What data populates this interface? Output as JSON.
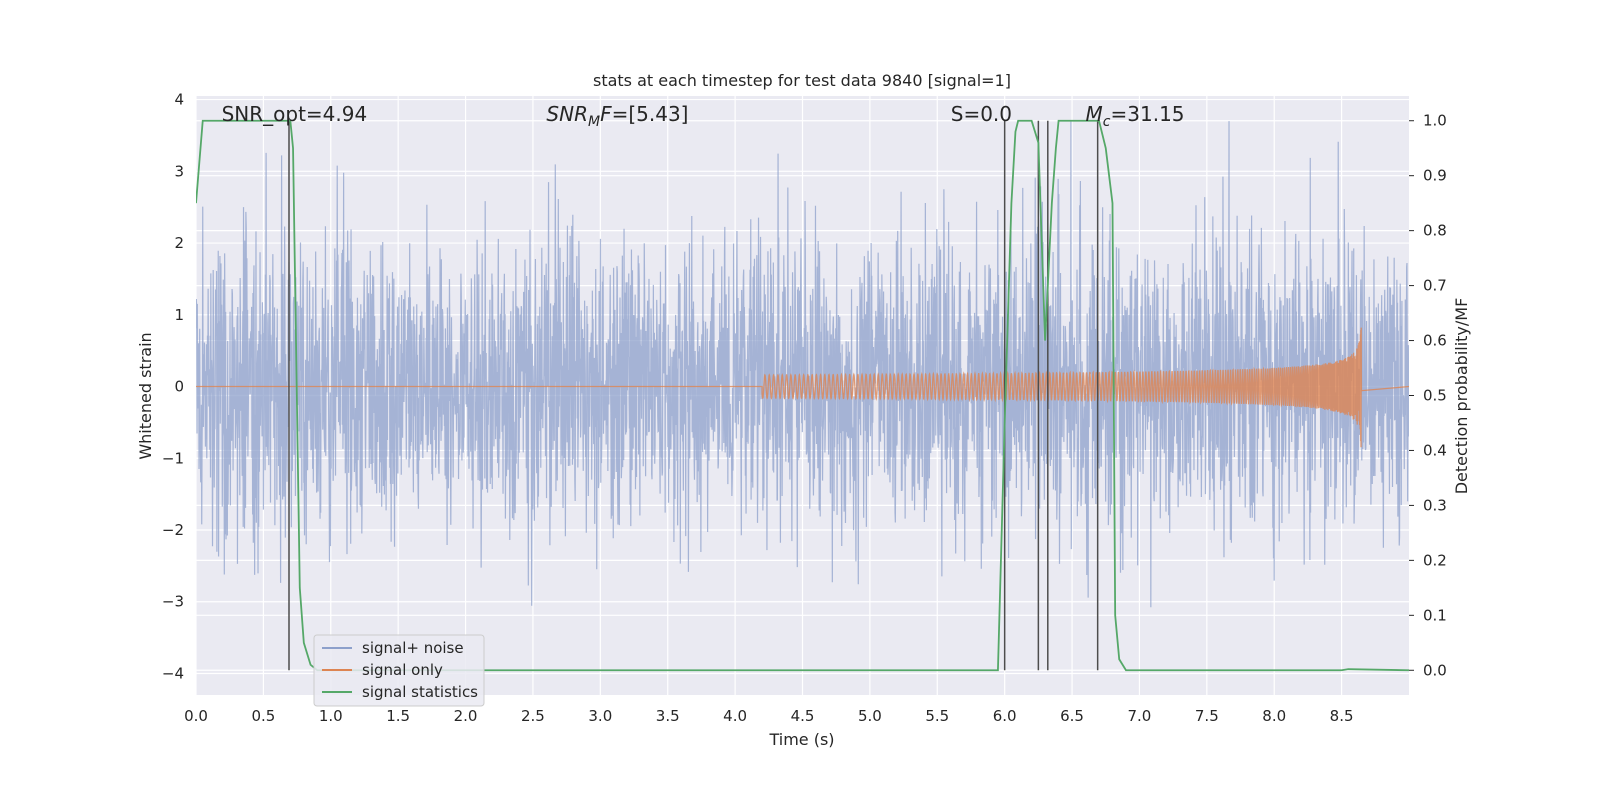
{
  "chart_data": {
    "type": "line",
    "title": "stats at each timestep for test data 9840 [signal=1]",
    "xlabel": "Time (s)",
    "ylabel_left": "Whitened strain",
    "ylabel_right": "Detection probability/MF",
    "xlim": [
      0.0,
      9.0
    ],
    "ylim_left": [
      -4.3,
      4.05
    ],
    "ylim_right": [
      -0.045,
      1.045
    ],
    "xticks": [
      0.0,
      0.5,
      1.0,
      1.5,
      2.0,
      2.5,
      3.0,
      3.5,
      4.0,
      4.5,
      5.0,
      5.5,
      6.0,
      6.5,
      7.0,
      7.5,
      8.0,
      8.5
    ],
    "xtick_labels": [
      "0.0",
      "0.5",
      "1.0",
      "1.5",
      "2.0",
      "2.5",
      "3.0",
      "3.5",
      "4.0",
      "4.5",
      "5.0",
      "5.5",
      "6.0",
      "6.5",
      "7.0",
      "7.5",
      "8.0",
      "8.5"
    ],
    "yticks_left": [
      4,
      3,
      2,
      1,
      0,
      -1,
      -2,
      -3,
      -4
    ],
    "ytick_labels_left": [
      "4",
      "3",
      "2",
      "1",
      "0",
      "−1",
      "−2",
      "−3",
      "−4"
    ],
    "yticks_right": [
      1.0,
      0.9,
      0.8,
      0.7,
      0.6,
      0.5,
      0.4,
      0.3,
      0.2,
      0.1,
      0.0
    ],
    "ytick_labels_right": [
      "1.0",
      "0.9",
      "0.8",
      "0.7",
      "0.6",
      "0.5",
      "0.4",
      "0.3",
      "0.2",
      "0.1",
      "0.0"
    ],
    "grid": true,
    "legend": {
      "placement": "lower-left",
      "entries": [
        {
          "label": "signal+ noise",
          "color": "#8da0cb"
        },
        {
          "label": "signal only",
          "color": "#dd8452"
        },
        {
          "label": "signal statistics",
          "color": "#55a868"
        }
      ]
    },
    "annotations": [
      {
        "text": "SNR_opt=4.94",
        "x": 0.19
      },
      {
        "text": "SNR_MF=[5.43]",
        "x": 2.6
      },
      {
        "text": "S=0.0",
        "x": 5.6
      },
      {
        "text": "M_c=31.15",
        "x": 6.6
      }
    ],
    "noise": {
      "name": "signal+ noise",
      "color": "#8da0cb",
      "t_start": 0.0,
      "t_end": 9.0,
      "sigma": 1.0,
      "peak_max": 3.7,
      "peak_min": -3.6
    },
    "signal": {
      "name": "signal only",
      "color": "#dd8452",
      "t_start": 4.2,
      "t_merge": 8.65,
      "peak_amplitude": 1.1
    },
    "statistics": {
      "name": "signal statistics",
      "color": "#55a868",
      "x": [
        0.0,
        0.05,
        0.1,
        0.7,
        0.72,
        0.77,
        0.8,
        0.85,
        0.9,
        0.95,
        5.9,
        5.95,
        6.0,
        6.05,
        6.08,
        6.1,
        6.2,
        6.25,
        6.3,
        6.35,
        6.38,
        6.4,
        6.45,
        6.7,
        6.75,
        6.8,
        6.82,
        6.85,
        6.9,
        8.5,
        8.55,
        9.0
      ],
      "y": [
        0.85,
        1.0,
        1.0,
        1.0,
        0.95,
        0.15,
        0.05,
        0.01,
        0.0,
        0.0,
        0.0,
        0.0,
        0.45,
        0.85,
        0.98,
        1.0,
        1.0,
        0.96,
        0.6,
        0.85,
        0.95,
        1.0,
        1.0,
        1.0,
        0.95,
        0.85,
        0.1,
        0.02,
        0.0,
        0.0,
        0.002,
        0.0
      ]
    },
    "vertical_lines": {
      "color": "#4d4d4d",
      "x": [
        0.69,
        6.0,
        6.25,
        6.32,
        6.69
      ]
    }
  }
}
